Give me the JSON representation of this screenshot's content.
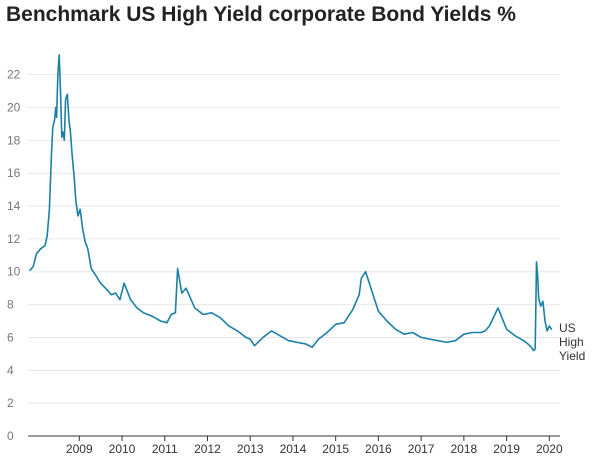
{
  "chart_data": {
    "type": "line",
    "title": "Benchmark US High Yield corporate Bond Yields %",
    "xlabel": "",
    "ylabel": "",
    "ylim": [
      0,
      23.5
    ],
    "y_ticks": [
      0,
      2,
      4,
      6,
      8,
      10,
      12,
      14,
      16,
      18,
      20,
      22
    ],
    "x_ticks": [
      "2009",
      "2010",
      "2011",
      "2012",
      "2013",
      "2014",
      "2015",
      "2016",
      "2017",
      "2018",
      "2019",
      "2020"
    ],
    "grid": true,
    "series_label_lines": [
      "US",
      "High",
      "Yield"
    ],
    "colors": {
      "line": "#1a80a6",
      "grid": "#e6e6e6",
      "axis": "#333333"
    },
    "series": [
      {
        "name": "US High Yield",
        "x": [
          2008.35,
          2008.42,
          2008.5,
          2008.6,
          2008.7,
          2008.75,
          2008.8,
          2008.85,
          2008.88,
          2008.92,
          2008.95,
          2008.97,
          2009.0,
          2009.03,
          2009.06,
          2009.09,
          2009.12,
          2009.15,
          2009.18,
          2009.22,
          2009.26,
          2009.29,
          2009.33,
          2009.38,
          2009.42,
          2009.47,
          2009.52,
          2009.58,
          2009.64,
          2009.7,
          2009.78,
          2009.88,
          2010.0,
          2010.15,
          2010.25,
          2010.35,
          2010.45,
          2010.55,
          2010.7,
          2010.85,
          2011.0,
          2011.2,
          2011.4,
          2011.55,
          2011.65,
          2011.75,
          2011.8,
          2011.9,
          2012.0,
          2012.2,
          2012.4,
          2012.6,
          2012.8,
          2013.0,
          2013.2,
          2013.4,
          2013.5,
          2013.6,
          2013.8,
          2014.0,
          2014.2,
          2014.4,
          2014.6,
          2014.8,
          2014.95,
          2015.1,
          2015.3,
          2015.5,
          2015.7,
          2015.9,
          2016.05,
          2016.1,
          2016.2,
          2016.35,
          2016.5,
          2016.7,
          2016.9,
          2017.1,
          2017.3,
          2017.5,
          2017.7,
          2017.9,
          2018.1,
          2018.3,
          2018.5,
          2018.7,
          2018.9,
          2019.0,
          2019.1,
          2019.3,
          2019.5,
          2019.7,
          2019.9,
          2020.0,
          2020.08,
          2020.13,
          2020.17,
          2020.2,
          2020.23,
          2020.25,
          2020.3,
          2020.35,
          2020.4,
          2020.45,
          2020.5,
          2020.55
        ],
        "values": [
          10.1,
          10.3,
          11.1,
          11.4,
          11.6,
          12.2,
          13.8,
          17.2,
          18.8,
          19.2,
          20.0,
          19.4,
          22.1,
          23.2,
          21.0,
          18.2,
          18.5,
          18.0,
          20.5,
          20.8,
          19.2,
          18.6,
          17.2,
          15.8,
          14.3,
          13.4,
          13.8,
          12.6,
          11.8,
          11.4,
          10.2,
          9.8,
          9.3,
          8.9,
          8.6,
          8.7,
          8.3,
          9.3,
          8.3,
          7.8,
          7.5,
          7.3,
          7.0,
          6.9,
          7.4,
          7.5,
          10.2,
          8.7,
          9.0,
          7.8,
          7.4,
          7.5,
          7.2,
          6.7,
          6.4,
          6.0,
          5.9,
          5.5,
          6.0,
          6.4,
          6.1,
          5.8,
          5.7,
          5.6,
          5.4,
          5.9,
          6.3,
          6.8,
          6.9,
          7.7,
          8.6,
          9.6,
          10.0,
          8.8,
          7.6,
          7.0,
          6.5,
          6.2,
          6.3,
          6.0,
          5.9,
          5.8,
          5.7,
          5.8,
          6.2,
          6.3,
          6.3,
          6.4,
          6.7,
          7.8,
          6.5,
          6.1,
          5.8,
          5.6,
          5.4,
          5.2,
          5.3,
          10.6,
          9.6,
          8.4,
          7.9,
          8.2,
          7.0,
          6.4,
          6.7,
          6.5
        ]
      }
    ]
  }
}
